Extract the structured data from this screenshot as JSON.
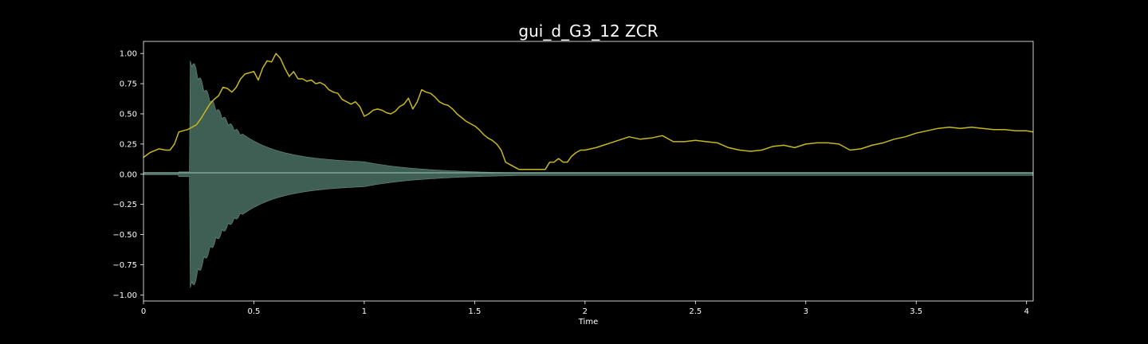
{
  "chart_data": {
    "type": "line",
    "title": "gui_d_G3_12 ZCR",
    "xlabel": "Time",
    "ylabel": "",
    "xlim": [
      0,
      4.03
    ],
    "ylim": [
      -1.05,
      1.1
    ],
    "grid": false,
    "background": "#000000",
    "x_ticks": [
      0,
      0.5,
      1,
      1.5,
      2,
      2.5,
      3,
      3.5,
      4
    ],
    "x_tick_labels": [
      "0",
      "0.5",
      "1",
      "1.5",
      "2",
      "2.5",
      "3",
      "3.5",
      "4"
    ],
    "y_ticks": [
      1.0,
      0.75,
      0.5,
      0.25,
      0.0,
      -0.25,
      -0.5,
      -0.75,
      -1.0
    ],
    "y_tick_labels": [
      "1.00",
      "0.75",
      "0.50",
      "0.25",
      "0.00",
      "−0.25",
      "−0.50",
      "−0.75",
      "−1.00"
    ],
    "series": [
      {
        "kind": "waveform_envelope",
        "color": "#3f5f55",
        "edge_color": "#7fa69a",
        "onset": 0.21,
        "peak": 0.96,
        "tail_end": 1.7,
        "note": ""
      },
      {
        "kind": "line",
        "color": "#c8b81e",
        "x": [
          0,
          0.03,
          0.07,
          0.1,
          0.12,
          0.14,
          0.16,
          0.18,
          0.2,
          0.22,
          0.24,
          0.26,
          0.28,
          0.3,
          0.32,
          0.34,
          0.36,
          0.38,
          0.4,
          0.42,
          0.44,
          0.46,
          0.48,
          0.5,
          0.52,
          0.54,
          0.56,
          0.58,
          0.6,
          0.62,
          0.64,
          0.66,
          0.68,
          0.7,
          0.72,
          0.74,
          0.76,
          0.78,
          0.8,
          0.82,
          0.84,
          0.86,
          0.88,
          0.9,
          0.92,
          0.94,
          0.96,
          0.98,
          1.0,
          1.02,
          1.04,
          1.06,
          1.08,
          1.1,
          1.12,
          1.14,
          1.16,
          1.18,
          1.2,
          1.22,
          1.24,
          1.26,
          1.28,
          1.3,
          1.32,
          1.34,
          1.36,
          1.38,
          1.4,
          1.42,
          1.44,
          1.46,
          1.48,
          1.5,
          1.52,
          1.54,
          1.56,
          1.58,
          1.6,
          1.62,
          1.64,
          1.66,
          1.68,
          1.7,
          1.72,
          1.74,
          1.76,
          1.78,
          1.8,
          1.82,
          1.84,
          1.86,
          1.88,
          1.9,
          1.92,
          1.94,
          1.96,
          1.98,
          2.0,
          2.05,
          2.1,
          2.15,
          2.2,
          2.25,
          2.3,
          2.35,
          2.4,
          2.45,
          2.5,
          2.55,
          2.6,
          2.65,
          2.7,
          2.75,
          2.8,
          2.85,
          2.9,
          2.95,
          3.0,
          3.05,
          3.1,
          3.15,
          3.2,
          3.25,
          3.3,
          3.35,
          3.4,
          3.45,
          3.5,
          3.55,
          3.6,
          3.65,
          3.7,
          3.75,
          3.8,
          3.85,
          3.9,
          3.95,
          4.0,
          4.03
        ],
        "y": [
          0.14,
          0.18,
          0.21,
          0.2,
          0.2,
          0.25,
          0.35,
          0.36,
          0.37,
          0.39,
          0.41,
          0.46,
          0.52,
          0.58,
          0.62,
          0.65,
          0.72,
          0.71,
          0.68,
          0.72,
          0.79,
          0.83,
          0.84,
          0.85,
          0.78,
          0.88,
          0.94,
          0.93,
          1.0,
          0.96,
          0.88,
          0.81,
          0.85,
          0.79,
          0.79,
          0.77,
          0.78,
          0.75,
          0.76,
          0.74,
          0.7,
          0.68,
          0.67,
          0.62,
          0.6,
          0.58,
          0.6,
          0.56,
          0.48,
          0.5,
          0.53,
          0.54,
          0.53,
          0.51,
          0.5,
          0.52,
          0.56,
          0.58,
          0.63,
          0.54,
          0.6,
          0.7,
          0.68,
          0.67,
          0.64,
          0.6,
          0.58,
          0.57,
          0.54,
          0.5,
          0.47,
          0.44,
          0.42,
          0.4,
          0.37,
          0.33,
          0.3,
          0.28,
          0.25,
          0.2,
          0.1,
          0.08,
          0.06,
          0.04,
          0.04,
          0.04,
          0.04,
          0.04,
          0.04,
          0.04,
          0.1,
          0.1,
          0.13,
          0.1,
          0.1,
          0.15,
          0.18,
          0.2,
          0.2,
          0.22,
          0.25,
          0.28,
          0.31,
          0.29,
          0.3,
          0.32,
          0.27,
          0.27,
          0.28,
          0.27,
          0.26,
          0.22,
          0.2,
          0.19,
          0.2,
          0.23,
          0.24,
          0.22,
          0.25,
          0.26,
          0.26,
          0.25,
          0.2,
          0.21,
          0.24,
          0.26,
          0.29,
          0.31,
          0.34,
          0.36,
          0.38,
          0.39,
          0.38,
          0.39,
          0.38,
          0.37,
          0.37,
          0.36,
          0.36,
          0.35
        ]
      }
    ]
  }
}
